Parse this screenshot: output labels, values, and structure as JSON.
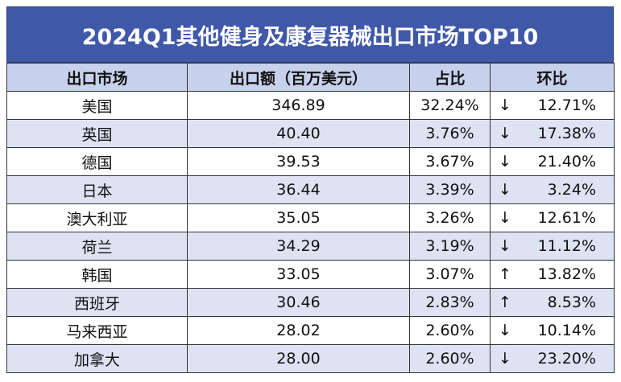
{
  "title": "2024Q1其他健身及康复器械出口市场TOP10",
  "table": {
    "header": [
      "出口市场",
      "出口额（百万美元）",
      "占比",
      "环比"
    ],
    "rows": [
      [
        "美国",
        "346.89",
        "32.24%",
        "↓",
        "12.71%"
      ],
      [
        "英国",
        "40.40",
        "3.76%",
        "↓",
        "17.38%"
      ],
      [
        "德国",
        "39.53",
        "3.67%",
        "↓",
        "21.40%"
      ],
      [
        "日本",
        "36.44",
        "3.39%",
        "↓",
        "3.24%"
      ],
      [
        "澳大利亚",
        "35.05",
        "3.26%",
        "↓",
        "12.61%"
      ],
      [
        "荷兰",
        "34.29",
        "3.19%",
        "↓",
        "11.12%"
      ],
      [
        "韩国",
        "33.05",
        "3.07%",
        "↑",
        "13.82%"
      ],
      [
        "西班牙",
        "30.46",
        "2.83%",
        "↑",
        "8.53%"
      ],
      [
        "马来西亚",
        "28.02",
        "2.60%",
        "↓",
        "10.14%"
      ],
      [
        "加拿大",
        "28.00",
        "2.60%",
        "↓",
        "23.20%"
      ]
    ]
  }
}
